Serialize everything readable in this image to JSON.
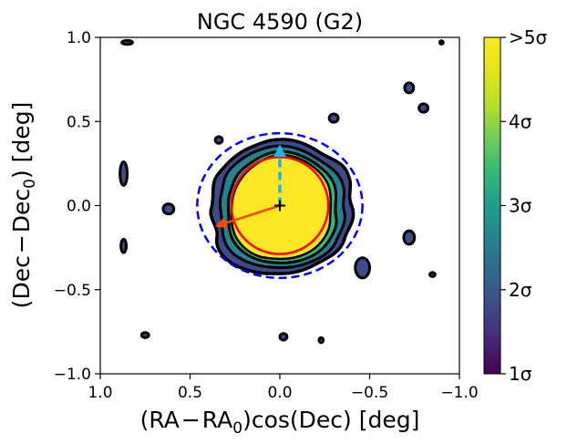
{
  "chart_data": {
    "type": "contour",
    "title": "NGC 4590 (G2)",
    "xlabel": "(RA−RA₀)cos(Dec) [deg]",
    "ylabel": "(Dec−Dec₀) [deg]",
    "xlim": [
      1.0,
      -1.0
    ],
    "ylim": [
      -1.0,
      1.0
    ],
    "x_ticks": [
      1.0,
      0.5,
      0.0,
      -0.5,
      -1.0
    ],
    "x_tick_labels": [
      "1.0",
      "0.5",
      "0.0",
      "−0.5",
      "−1.0"
    ],
    "y_ticks": [
      1.0,
      0.5,
      0.0,
      -0.5,
      -1.0
    ],
    "y_tick_labels": [
      "1.0",
      "0.5",
      "0.0",
      "−0.5",
      "−1.0"
    ],
    "colorbar": {
      "colormap": "viridis",
      "range": [
        1,
        5
      ],
      "ticks": [
        1,
        2,
        3,
        4,
        5
      ],
      "tick_labels": [
        "1σ",
        "2σ",
        "3σ",
        "4σ",
        ">5σ"
      ]
    },
    "cluster_center": [
      0.0,
      0.0
    ],
    "circles": [
      {
        "name": "solid-red-circle",
        "center": [
          0.0,
          0.0
        ],
        "radius_deg": 0.27,
        "color": "#ff0000",
        "style": "solid"
      },
      {
        "name": "dashed-blue-circle",
        "center": [
          0.0,
          0.0
        ],
        "radius_deg": 0.46,
        "ry_deg": 0.43,
        "color": "#0000ff",
        "style": "dashed"
      }
    ],
    "arrows": [
      {
        "name": "proper-motion-arrow",
        "from": [
          0.0,
          0.0
        ],
        "to": [
          0.35,
          -0.12
        ],
        "color": "#ff4500",
        "style": "solid"
      },
      {
        "name": "north-dashed-arrow",
        "from": [
          0.0,
          0.0
        ],
        "to": [
          0.0,
          0.35
        ],
        "color": "#1fb4e8",
        "style": "dashed"
      }
    ],
    "contour_blobs": [
      {
        "center": [
          0.85,
          0.97
        ],
        "rx": 0.03,
        "ry": 0.012,
        "level": 1
      },
      {
        "center": [
          -0.9,
          0.97
        ],
        "rx": 0.01,
        "ry": 0.01,
        "level": 1
      },
      {
        "center": [
          -0.72,
          0.7
        ],
        "rx": 0.025,
        "ry": 0.03,
        "level": 1
      },
      {
        "center": [
          -0.8,
          0.58
        ],
        "rx": 0.025,
        "ry": 0.025,
        "level": 1
      },
      {
        "center": [
          -0.3,
          0.52
        ],
        "rx": 0.025,
        "ry": 0.025,
        "level": 1
      },
      {
        "center": [
          0.34,
          0.39
        ],
        "rx": 0.02,
        "ry": 0.02,
        "level": 1
      },
      {
        "center": [
          0.87,
          0.19
        ],
        "rx": 0.02,
        "ry": 0.07,
        "level": 1
      },
      {
        "center": [
          0.62,
          -0.02
        ],
        "rx": 0.03,
        "ry": 0.03,
        "level": 1
      },
      {
        "center": [
          -0.72,
          -0.19
        ],
        "rx": 0.03,
        "ry": 0.04,
        "level": 1
      },
      {
        "center": [
          0.87,
          -0.24
        ],
        "rx": 0.015,
        "ry": 0.04,
        "level": 1
      },
      {
        "center": [
          -0.46,
          -0.37
        ],
        "rx": 0.04,
        "ry": 0.06,
        "level": 1
      },
      {
        "center": [
          -0.85,
          -0.41
        ],
        "rx": 0.015,
        "ry": 0.012,
        "level": 1
      },
      {
        "center": [
          0.75,
          -0.77
        ],
        "rx": 0.02,
        "ry": 0.015,
        "level": 1
      },
      {
        "center": [
          -0.02,
          -0.78
        ],
        "rx": 0.02,
        "ry": 0.02,
        "level": 1
      },
      {
        "center": [
          -0.23,
          -0.8
        ],
        "rx": 0.012,
        "ry": 0.015,
        "level": 1
      }
    ]
  }
}
